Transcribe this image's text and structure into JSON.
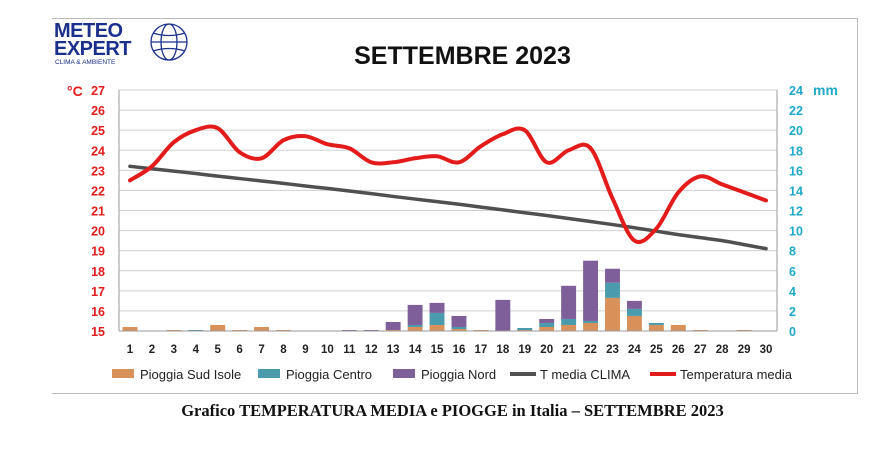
{
  "logo": {
    "line1": "METEO",
    "line2": "EXPERT",
    "tagline": "CLIMA & AMBIENTE"
  },
  "caption": "Grafico TEMPERATURA MEDIA e PIOGGE in Italia – SETTEMBRE 2023",
  "colors": {
    "sud": "#d9915a",
    "centro": "#4a9bac",
    "nord": "#7f5f9a",
    "clima": "#505050",
    "temp": "#e31b1b",
    "left_axis": "#e31b1b",
    "right_axis": "#1fa9c9"
  },
  "chart_data": {
    "type": "bar+line",
    "title": "SETTEMBRE 2023",
    "left_unit": "°C",
    "right_unit": "mm",
    "left_ylim": [
      15,
      27
    ],
    "right_ylim": [
      0,
      24
    ],
    "left_ticks": [
      15,
      16,
      17,
      18,
      19,
      20,
      21,
      22,
      23,
      24,
      25,
      26,
      27
    ],
    "right_ticks": [
      0,
      2,
      4,
      6,
      8,
      10,
      12,
      14,
      16,
      18,
      20,
      22,
      24
    ],
    "categories": [
      "1",
      "2",
      "3",
      "4",
      "5",
      "6",
      "7",
      "8",
      "9",
      "10",
      "11",
      "12",
      "13",
      "14",
      "15",
      "16",
      "17",
      "18",
      "19",
      "20",
      "21",
      "22",
      "23",
      "24",
      "25",
      "26",
      "27",
      "28",
      "29",
      "30"
    ],
    "legend_position": "bottom",
    "bar_series": [
      {
        "name": "Pioggia Sud Isole",
        "color_key": "sud",
        "values": [
          0.4,
          0,
          0.1,
          0,
          0.6,
          0.1,
          0.4,
          0.1,
          0,
          0,
          0,
          0,
          0.1,
          0.4,
          0.6,
          0.2,
          0.1,
          0,
          0.1,
          0.4,
          0.6,
          0.8,
          3.3,
          1.5,
          0.6,
          0.6,
          0.1,
          0,
          0.1,
          0
        ]
      },
      {
        "name": "Pioggia Centro",
        "color_key": "centro",
        "values": [
          0,
          0,
          0,
          0.1,
          0,
          0,
          0,
          0,
          0,
          0,
          0,
          0,
          0,
          0.2,
          1.2,
          0.2,
          0,
          0,
          0.2,
          0.4,
          0.6,
          0.2,
          1.5,
          0.7,
          0.2,
          0,
          0,
          0,
          0,
          0
        ]
      },
      {
        "name": "Pioggia Nord",
        "color_key": "nord",
        "values": [
          0,
          0,
          0,
          0,
          0,
          0,
          0,
          0,
          0,
          0,
          0.1,
          0.1,
          0.8,
          2.0,
          1.0,
          1.1,
          0,
          3.1,
          0,
          0.4,
          3.3,
          6.0,
          1.4,
          0.8,
          0,
          0,
          0,
          0,
          0,
          0
        ]
      }
    ],
    "line_series": [
      {
        "name": "T media CLIMA",
        "color_key": "clima",
        "values": [
          23.2,
          23.08,
          22.96,
          22.84,
          22.71,
          22.59,
          22.47,
          22.35,
          22.22,
          22.1,
          21.97,
          21.84,
          21.7,
          21.57,
          21.44,
          21.31,
          21.17,
          21.03,
          20.89,
          20.75,
          20.6,
          20.45,
          20.3,
          20.14,
          19.97,
          19.8,
          19.65,
          19.5,
          19.3,
          19.1
        ]
      },
      {
        "name": "Temperatura media",
        "color_key": "temp",
        "values": [
          22.5,
          23.2,
          24.4,
          25.0,
          25.1,
          23.9,
          23.6,
          24.5,
          24.7,
          24.3,
          24.1,
          23.4,
          23.4,
          23.6,
          23.7,
          23.4,
          24.2,
          24.8,
          25.0,
          23.4,
          24.0,
          24.1,
          21.6,
          19.5,
          20.1,
          21.9,
          22.7,
          22.3,
          21.9,
          21.5
        ]
      }
    ]
  }
}
